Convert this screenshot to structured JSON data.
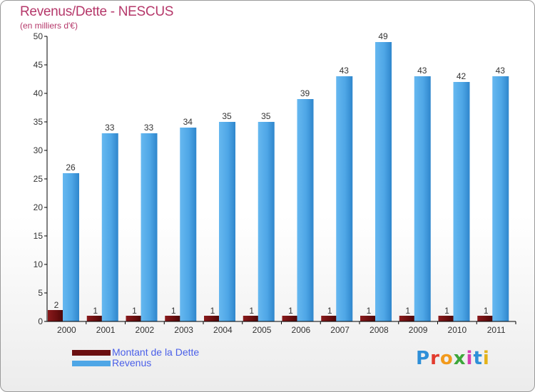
{
  "title": "Revenus/Dette - NESCUS",
  "subtitle": "(en milliers d'€)",
  "colors": {
    "title": "#b5386a",
    "debt": "#6b0f10",
    "revenue": "#4ea6e6",
    "legend_text": "#4a5fe8",
    "axis": "#000000"
  },
  "legend": {
    "debt_label": "Montant de la Dette",
    "revenue_label": "Revenus"
  },
  "logo": {
    "text": "Proxiti",
    "letter_colors": [
      "#2e8fd8",
      "#e23b2e",
      "#f29a1c",
      "#3da63a",
      "#d63cb0",
      "#2e8fd8",
      "#e3b21a"
    ]
  },
  "chart_data": {
    "type": "bar",
    "title": "Revenus/Dette - NESCUS",
    "xlabel": "",
    "ylabel": "(en milliers d'€)",
    "ylim": [
      0,
      50
    ],
    "yticks": [
      0,
      5,
      10,
      15,
      20,
      25,
      30,
      35,
      40,
      45,
      50
    ],
    "grid": false,
    "legend_position": "bottom-left",
    "categories": [
      "2000",
      "2001",
      "2002",
      "2003",
      "2004",
      "2005",
      "2006",
      "2007",
      "2008",
      "2009",
      "2010",
      "2011"
    ],
    "series": [
      {
        "name": "Montant de la Dette",
        "values": [
          2,
          1,
          1,
          1,
          1,
          1,
          1,
          1,
          1,
          1,
          1,
          1
        ]
      },
      {
        "name": "Revenus",
        "values": [
          26,
          33,
          33,
          34,
          35,
          35,
          39,
          43,
          49,
          43,
          42,
          43
        ]
      }
    ]
  }
}
